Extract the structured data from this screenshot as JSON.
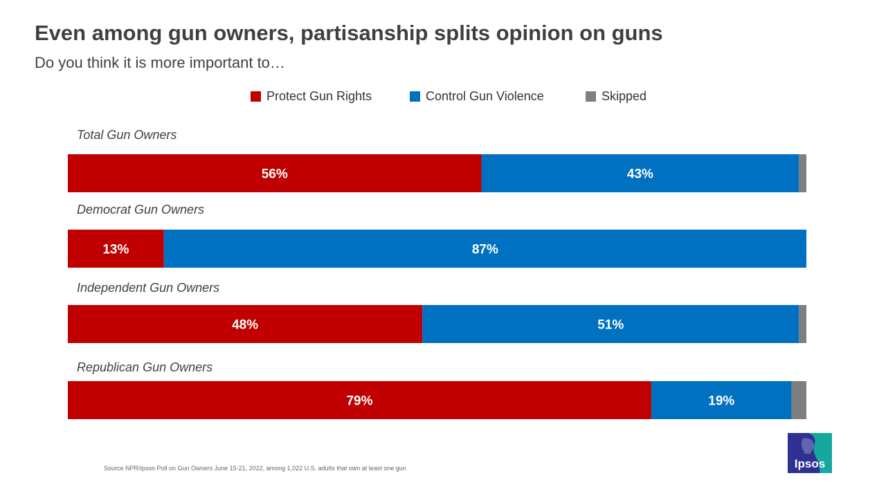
{
  "header": {
    "title": "Even among gun owners, partisanship splits opinion on guns",
    "subtitle": "Do you think it is more important to…"
  },
  "colors": {
    "protect": "#c00000",
    "control": "#0070c0",
    "skipped": "#7f7f7f",
    "logo_blue": "#2e3192",
    "logo_teal": "#16a89e"
  },
  "chart_data": {
    "type": "bar",
    "orientation": "horizontal",
    "stacked": true,
    "title": "Even among gun owners, partisanship splits opinion on guns",
    "subtitle": "Do you think it is more important to…",
    "categories": [
      "Total Gun Owners",
      "Democrat Gun Owners",
      "Independent Gun Owners",
      "Republican Gun Owners"
    ],
    "series": [
      {
        "name": "Protect Gun Rights",
        "color": "#c00000",
        "values": [
          56,
          13,
          48,
          79
        ],
        "labels": [
          "56%",
          "13%",
          "48%",
          "79%"
        ]
      },
      {
        "name": "Control Gun Violence",
        "color": "#0070c0",
        "values": [
          43,
          87,
          51,
          19
        ],
        "labels": [
          "43%",
          "87%",
          "51%",
          "19%"
        ]
      },
      {
        "name": "Skipped",
        "color": "#7f7f7f",
        "values": [
          1,
          0,
          1,
          2
        ],
        "labels": [
          "",
          "",
          "",
          ""
        ]
      }
    ],
    "xlim": [
      0,
      100
    ],
    "legend_position": "top-center",
    "grid": false
  },
  "footer": {
    "source": "Source NPR/Ipsos Poll on Gun Owners June 15-21, 2022, among 1,022 U.S. adults that own at least one gun",
    "logo_text": "Ipsos"
  }
}
